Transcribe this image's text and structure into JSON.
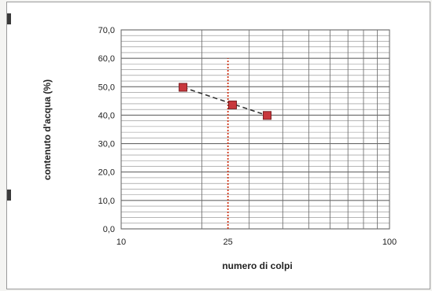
{
  "chart_data": {
    "type": "scatter",
    "xlabel": "numero di colpi",
    "ylabel": "contenuto d'acqua (%)",
    "x_scale": "log",
    "xlim": [
      10,
      100
    ],
    "ylim": [
      0,
      70
    ],
    "x_tick_labels": [
      "10",
      "25",
      "100"
    ],
    "x_tick_values": [
      10,
      25,
      100
    ],
    "y_tick_labels": [
      "0,0",
      "10,0",
      "20,0",
      "30,0",
      "40,0",
      "50,0",
      "60,0",
      "70,0"
    ],
    "y_tick_values": [
      0,
      10,
      20,
      30,
      40,
      50,
      60,
      70
    ],
    "grid": true,
    "series": [
      {
        "x": [
          17,
          26,
          35
        ],
        "y": [
          49.8,
          43.6,
          39.9
        ],
        "marker": "square",
        "color": "#c8373c"
      }
    ],
    "trendline": {
      "style": "dashed",
      "color": "#333333",
      "x": [
        17,
        35
      ],
      "y": [
        49.8,
        39.9
      ]
    },
    "reference_line": {
      "x": 25,
      "y_range": [
        0,
        60
      ],
      "style": "dotted",
      "color": "#d23a1e"
    }
  }
}
